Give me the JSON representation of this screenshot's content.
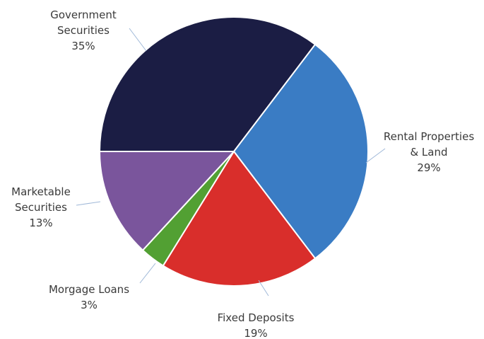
{
  "chart_data": {
    "type": "pie",
    "title": "",
    "slices": [
      {
        "label_lines": [
          "Government",
          "Securities"
        ],
        "value": 35,
        "value_label": "35%",
        "color": "#1b1d44"
      },
      {
        "label_lines": [
          "Rental Properties",
          "& Land"
        ],
        "value": 29,
        "value_label": "29%",
        "color": "#3a7cc4"
      },
      {
        "label_lines": [
          "Fixed Deposits"
        ],
        "value": 19,
        "value_label": "19%",
        "color": "#d92e2b"
      },
      {
        "label_lines": [
          "Morgage Loans"
        ],
        "value": 3,
        "value_label": "3%",
        "color": "#52a033"
      },
      {
        "label_lines": [
          "Marketable",
          "Securities"
        ],
        "value": 13,
        "value_label": "13%",
        "color": "#7a559c"
      }
    ]
  }
}
